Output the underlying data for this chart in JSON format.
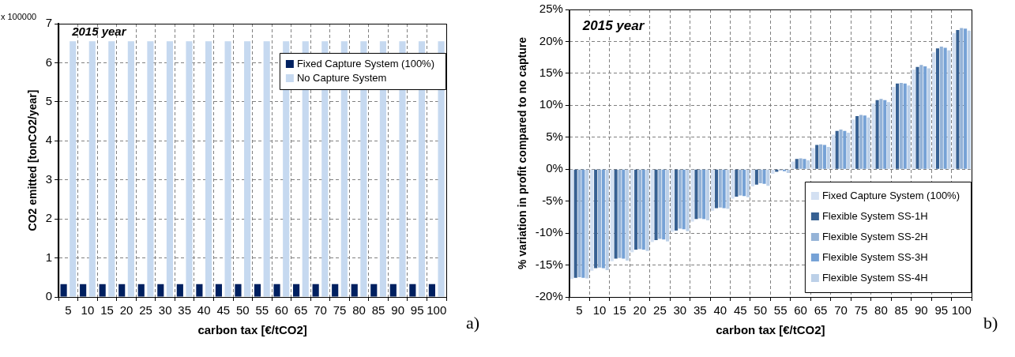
{
  "chart_data": [
    {
      "type": "bar",
      "xlabel": "carbon tax [€/tCO2]",
      "ylabel": "CO2 emitted [tonCO2/year]",
      "categories": [
        "5",
        "10",
        "15",
        "20",
        "25",
        "30",
        "35",
        "40",
        "45",
        "50",
        "55",
        "60",
        "65",
        "70",
        "75",
        "80",
        "85",
        "90",
        "95",
        "100"
      ],
      "series": [
        {
          "name": "Fixed Capture System (100%)",
          "color": "#002060",
          "values": [
            0.33,
            0.33,
            0.33,
            0.33,
            0.33,
            0.33,
            0.33,
            0.33,
            0.33,
            0.33,
            0.33,
            0.33,
            0.33,
            0.33,
            0.33,
            0.33,
            0.33,
            0.33,
            0.33,
            0.33
          ]
        },
        {
          "name": "No Capture System",
          "color": "#c6d9f0",
          "values": [
            6.55,
            6.55,
            6.55,
            6.55,
            6.55,
            6.55,
            6.55,
            6.55,
            6.55,
            6.55,
            6.55,
            6.55,
            6.55,
            6.55,
            6.55,
            6.55,
            6.55,
            6.55,
            6.55,
            6.55
          ]
        }
      ],
      "ylim": [
        0,
        7
      ],
      "yticks": [
        0,
        1,
        2,
        3,
        4,
        5,
        6,
        7
      ],
      "grid": true,
      "legend": "top right",
      "annotations": [
        "2015 year",
        "x 100000",
        "a)"
      ]
    },
    {
      "type": "bar",
      "xlabel": "carbon tax [€/tCO2]",
      "ylabel": "% variation in profit compared to no capture",
      "categories": [
        "5",
        "10",
        "15",
        "20",
        "25",
        "30",
        "35",
        "40",
        "45",
        "50",
        "55",
        "60",
        "65",
        "70",
        "75",
        "80",
        "85",
        "90",
        "95",
        "100"
      ],
      "series": [
        {
          "name": "Fixed Capture System (100%)",
          "color": "#d3e0f2",
          "values": [
            -17.2,
            -15.9,
            -14.4,
            -13,
            -11.4,
            -9.8,
            -8.2,
            -6.5,
            -4.6,
            -2.7,
            -0.7,
            1.2,
            3.3,
            5.4,
            7.8,
            10.3,
            12.9,
            15.6,
            18.3,
            21.3
          ]
        },
        {
          "name": "Flexible System SS-1H",
          "color": "#366092",
          "values": [
            -17,
            -15.5,
            -14,
            -12.6,
            -11.1,
            -9.6,
            -7.8,
            -6.1,
            -4.3,
            -2.4,
            -0.4,
            1.6,
            3.8,
            6,
            8.3,
            10.8,
            13.4,
            16,
            18.9,
            21.8
          ]
        },
        {
          "name": "Flexible System SS-2H",
          "color": "#95b3d7",
          "values": [
            -16.9,
            -15.4,
            -13.9,
            -12.5,
            -10.9,
            -9.3,
            -7.7,
            -6,
            -4.1,
            -2.2,
            -0.2,
            1.7,
            3.9,
            6.2,
            8.5,
            11,
            13.5,
            16.3,
            19.2,
            22.1
          ]
        },
        {
          "name": "Flexible System SS-3H",
          "color": "#76a2d6",
          "values": [
            -17,
            -15.5,
            -14,
            -12.6,
            -11,
            -9.4,
            -7.8,
            -6.1,
            -4.2,
            -2.3,
            -0.3,
            1.6,
            3.8,
            6,
            8.4,
            10.8,
            13.4,
            16.1,
            19,
            22
          ]
        },
        {
          "name": "Flexible System SS-4H",
          "color": "#bcd0e8",
          "values": [
            -17.1,
            -15.8,
            -14.3,
            -12.8,
            -11.3,
            -9.7,
            -8,
            -6.2,
            -4.4,
            -2.6,
            -0.6,
            1.4,
            3.5,
            5.7,
            8.1,
            10.5,
            13.1,
            15.8,
            18.6,
            21.7
          ]
        }
      ],
      "ylim": [
        -20,
        25
      ],
      "yticks": [
        {
          "value": -20,
          "label": "-20%"
        },
        {
          "value": -15,
          "label": "-15%"
        },
        {
          "value": -10,
          "label": "-10%"
        },
        {
          "value": -5,
          "label": "-5%"
        },
        {
          "value": 0,
          "label": "0%"
        },
        {
          "value": 5,
          "label": "5%"
        },
        {
          "value": 10,
          "label": "10%"
        },
        {
          "value": 15,
          "label": "15%"
        },
        {
          "value": 20,
          "label": "20%"
        },
        {
          "value": 25,
          "label": "25%"
        }
      ],
      "grid": true,
      "legend": "bottom right",
      "annotations": [
        "2015 year",
        "b)"
      ]
    }
  ]
}
